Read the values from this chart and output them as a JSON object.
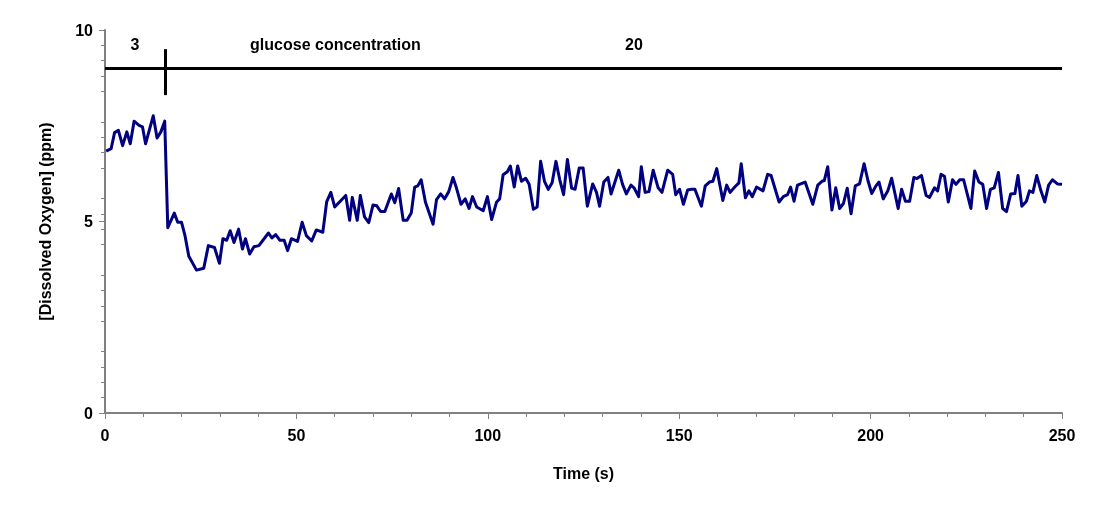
{
  "chart_data": {
    "type": "line",
    "xlabel": "Time (s)",
    "ylabel": "[Dissolved Oxygen] (ppm)",
    "xlim": [
      0,
      250
    ],
    "xticks": [
      0,
      50,
      100,
      150,
      200,
      250
    ],
    "ylim": [
      0,
      10
    ],
    "yticks": [
      0,
      5,
      10
    ],
    "marker": "none",
    "line_style": "solid",
    "ref_lines": [
      {
        "axis": "y",
        "value": 9,
        "color": "#000000"
      },
      {
        "axis": "x",
        "value": 15.7,
        "color": "#000000"
      }
    ],
    "annotations": [
      "3",
      "glucose concentration",
      "20"
    ],
    "series": [
      {
        "color": "#000080",
        "x": [
          0.3,
          1.6,
          2.5,
          3.5,
          4.6,
          5.7,
          6.6,
          7.6,
          8.9,
          9.8,
          10.6,
          12.6,
          13.6,
          14.6,
          15.6,
          16.4,
          18.1,
          19.0,
          20.0,
          20.9,
          21.9,
          23.9,
          25.8,
          27.0,
          28.6,
          29.9,
          30.8,
          31.8,
          32.7,
          33.7,
          34.9,
          35.9,
          36.7,
          37.8,
          38.9,
          40.2,
          42.7,
          43.6,
          44.6,
          45.7,
          46.8,
          47.7,
          48.7,
          50.3,
          51.5,
          52.6,
          54.0,
          55.2,
          56.9,
          57.9,
          59.0,
          60.0,
          62.9,
          63.9,
          64.6,
          65.9,
          66.7,
          67.8,
          68.9,
          70.0,
          71.0,
          72.0,
          73.1,
          74.8,
          75.7,
          76.7,
          77.9,
          78.9,
          80.0,
          80.9,
          81.7,
          82.6,
          83.7,
          85.7,
          86.6,
          87.7,
          88.7,
          89.8,
          90.9,
          91.8,
          93.0,
          94.1,
          95.1,
          96.0,
          97.1,
          98.8,
          99.9,
          101.0,
          102.3,
          103.1,
          104.0,
          105.1,
          105.9,
          106.9,
          107.8,
          108.8,
          109.9,
          110.8,
          111.9,
          112.9,
          113.8,
          114.8,
          115.8,
          116.8,
          117.8,
          118.8,
          119.8,
          120.8,
          121.9,
          122.8,
          123.9,
          124.9,
          126.0,
          127.4,
          128.4,
          129.2,
          130.3,
          131.4,
          132.2,
          134.2,
          135.2,
          136.2,
          137.4,
          138.2,
          139.4,
          140.1,
          141.1,
          142.1,
          143.2,
          144.5,
          145.5,
          147.0,
          148.3,
          149.1,
          150.1,
          151.1,
          152.2,
          153.2,
          154.1,
          155.8,
          156.8,
          157.9,
          158.8,
          159.8,
          161.4,
          162.4,
          163.3,
          164.5,
          165.6,
          166.2,
          167.3,
          168.2,
          169.1,
          170.2,
          171.9,
          173.1,
          174.0,
          176.1,
          177.2,
          178.3,
          179.1,
          180.0,
          180.9,
          182.9,
          184.9,
          186.2,
          187.3,
          187.9,
          188.8,
          189.9,
          190.9,
          191.9,
          192.9,
          193.9,
          194.9,
          196.0,
          197.1,
          198.3,
          199.3,
          200.3,
          201.4,
          202.2,
          203.3,
          204.5,
          205.5,
          207.2,
          208.1,
          209.1,
          210.2,
          211.3,
          212.1,
          213.3,
          214.5,
          215.4,
          216.7,
          217.5,
          218.4,
          219.3,
          220.3,
          221.4,
          222.3,
          223.3,
          224.3,
          226.2,
          227.2,
          228.3,
          229.3,
          230.3,
          231.3,
          232.3,
          233.4,
          234.5,
          235.5,
          236.6,
          237.7,
          238.5,
          239.5,
          240.7,
          241.5,
          242.4,
          243.4,
          244.5,
          245.5,
          246.5,
          247.5,
          248.8,
          250
        ],
        "values": [
          6.84,
          6.9,
          7.32,
          7.38,
          6.98,
          7.34,
          7.03,
          7.62,
          7.51,
          7.47,
          7.03,
          7.76,
          7.18,
          7.34,
          7.62,
          4.84,
          5.22,
          4.98,
          4.98,
          4.63,
          4.09,
          3.73,
          3.78,
          4.37,
          4.32,
          3.91,
          4.55,
          4.51,
          4.76,
          4.45,
          4.8,
          4.28,
          4.55,
          4.15,
          4.34,
          4.37,
          4.7,
          4.57,
          4.66,
          4.51,
          4.51,
          4.24,
          4.55,
          4.48,
          4.98,
          4.63,
          4.49,
          4.78,
          4.72,
          5.51,
          5.76,
          5.38,
          5.68,
          5.03,
          5.63,
          5.03,
          5.68,
          5.12,
          4.97,
          5.43,
          5.41,
          5.26,
          5.26,
          5.72,
          5.49,
          5.86,
          5.03,
          5.03,
          5.22,
          5.9,
          5.93,
          6.09,
          5.51,
          4.93,
          5.57,
          5.72,
          5.59,
          5.78,
          6.15,
          5.88,
          5.45,
          5.59,
          5.34,
          5.65,
          5.38,
          5.28,
          5.65,
          5.05,
          5.51,
          5.59,
          6.22,
          6.3,
          6.45,
          5.9,
          6.45,
          6.05,
          6.13,
          5.97,
          5.32,
          5.38,
          6.57,
          6.05,
          5.84,
          6.01,
          6.57,
          6.09,
          5.7,
          6.62,
          5.87,
          5.84,
          6.4,
          6.4,
          5.4,
          5.98,
          5.76,
          5.4,
          6.03,
          6.15,
          5.72,
          6.34,
          5.97,
          5.72,
          5.95,
          5.88,
          5.65,
          6.43,
          5.76,
          5.78,
          6.34,
          5.88,
          5.76,
          6.34,
          6.23,
          5.7,
          5.84,
          5.45,
          5.82,
          5.84,
          5.84,
          5.4,
          5.93,
          6.03,
          6.05,
          6.38,
          5.55,
          5.95,
          5.76,
          5.9,
          6.01,
          6.51,
          5.62,
          5.8,
          5.65,
          5.9,
          5.8,
          6.23,
          6.2,
          5.51,
          5.65,
          5.7,
          5.9,
          5.53,
          5.95,
          6.03,
          5.45,
          5.95,
          6.05,
          6.07,
          6.43,
          5.3,
          5.88,
          5.34,
          5.47,
          5.87,
          5.2,
          5.93,
          5.98,
          6.51,
          6.07,
          5.73,
          5.93,
          6.03,
          5.59,
          5.8,
          6.13,
          5.34,
          5.84,
          5.53,
          5.53,
          6.15,
          6.12,
          6.2,
          5.68,
          5.63,
          5.88,
          5.8,
          6.23,
          6.18,
          5.51,
          6.09,
          5.97,
          6.09,
          6.09,
          5.34,
          6.32,
          6.03,
          5.97,
          5.34,
          5.84,
          5.88,
          6.28,
          5.34,
          5.26,
          5.72,
          5.73,
          6.2,
          5.4,
          5.53,
          5.8,
          5.76,
          6.2,
          5.8,
          5.51,
          5.95,
          6.09,
          5.98,
          5.97
        ]
      }
    ]
  }
}
